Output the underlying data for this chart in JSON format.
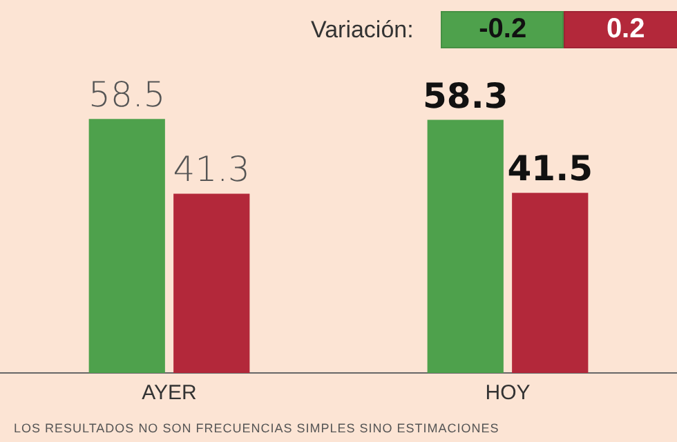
{
  "chart_data": {
    "type": "bar",
    "categories": [
      "AYER",
      "HOY"
    ],
    "series": [
      {
        "color": "#4ea14c",
        "values": [
          58.5,
          58.3
        ]
      },
      {
        "color": "#b3283a",
        "values": [
          41.3,
          41.5
        ]
      }
    ],
    "data_labels": true,
    "grid": false,
    "legend": false,
    "annotations": [
      "Variación:",
      "-0.2",
      "0.2",
      "LOS RESULTADOS NO SON FRECUENCIAS SIMPLES SINO ESTIMACIONES"
    ]
  }
}
